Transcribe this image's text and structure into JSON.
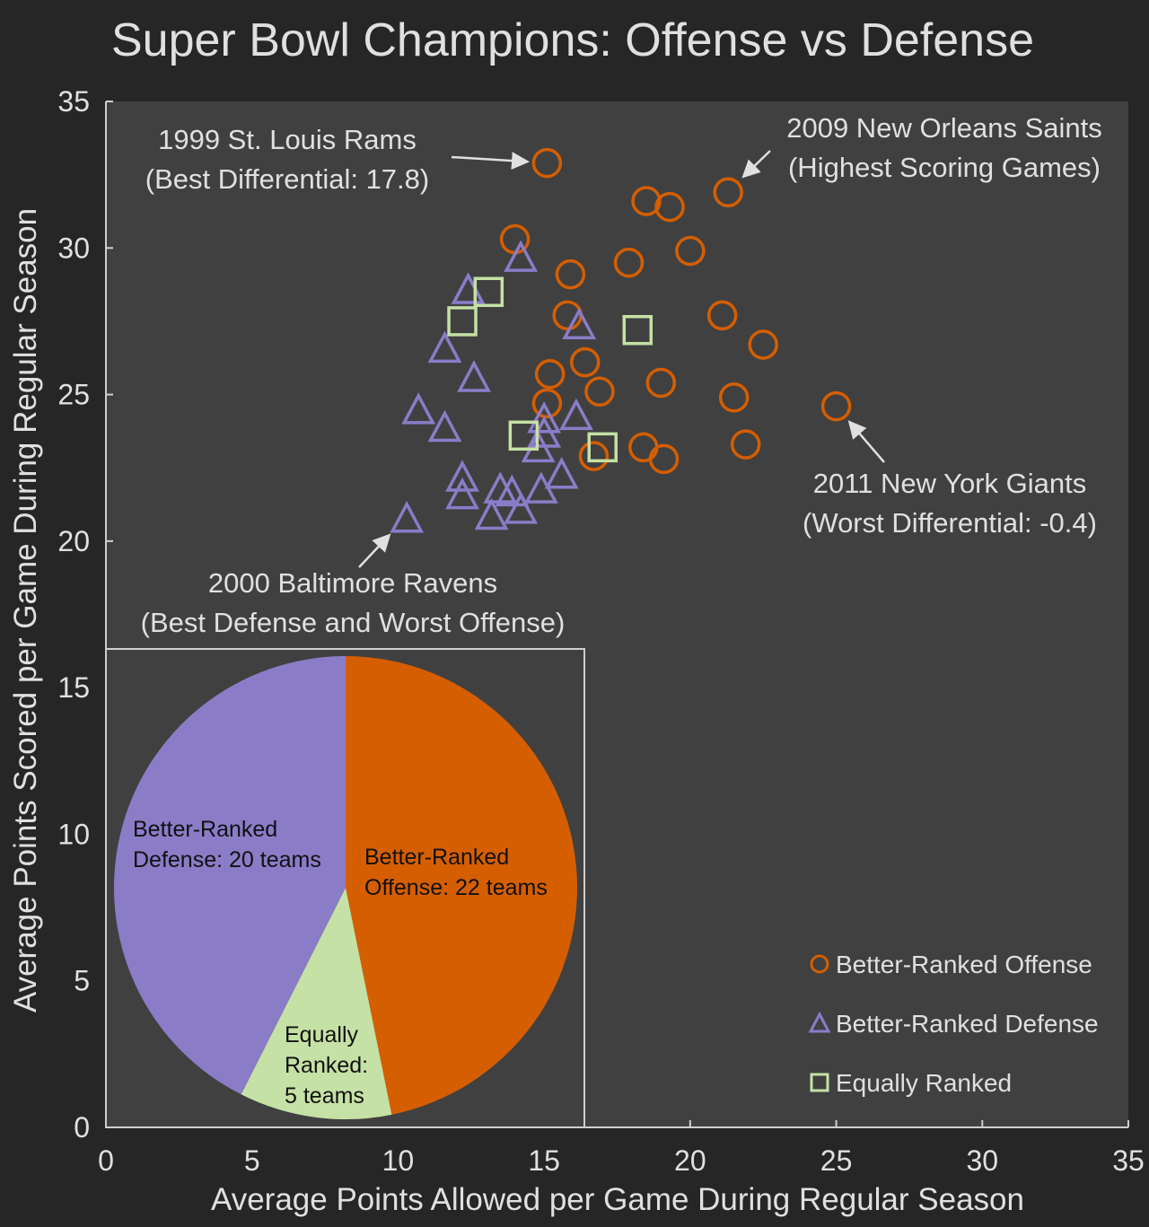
{
  "chart_data": {
    "type": "scatter",
    "title": "Super Bowl Champions: Offense vs Defense",
    "xlabel": "Average Points Allowed per Game During Regular Season",
    "ylabel": "Average Points Scored per Game During Regular Season",
    "xlim": [
      0,
      35
    ],
    "ylim": [
      0,
      35
    ],
    "xticks": [
      0,
      5,
      10,
      15,
      20,
      25,
      30,
      35
    ],
    "yticks": [
      0,
      5,
      10,
      15,
      20,
      25,
      30,
      35
    ],
    "grid": false,
    "legend_position": "bottom-right",
    "colors": {
      "offense": "#d55e00",
      "defense": "#8b7cc8",
      "equal": "#c5e1a5",
      "plot_bg": "#404040",
      "page_bg": "#262626"
    },
    "series": [
      {
        "name": "Better-Ranked Offense",
        "marker": "circle",
        "points": [
          [
            15.1,
            32.9
          ],
          [
            14.0,
            30.3
          ],
          [
            21.3,
            31.9
          ],
          [
            18.5,
            31.6
          ],
          [
            19.3,
            31.4
          ],
          [
            20.0,
            29.9
          ],
          [
            17.9,
            29.5
          ],
          [
            15.9,
            29.1
          ],
          [
            15.8,
            27.7
          ],
          [
            21.1,
            27.7
          ],
          [
            22.5,
            26.7
          ],
          [
            16.4,
            26.1
          ],
          [
            15.2,
            25.7
          ],
          [
            19.0,
            25.4
          ],
          [
            16.9,
            25.1
          ],
          [
            21.5,
            24.9
          ],
          [
            15.1,
            24.7
          ],
          [
            25.0,
            24.6
          ],
          [
            21.9,
            23.3
          ],
          [
            16.7,
            22.9
          ],
          [
            18.4,
            23.2
          ],
          [
            19.1,
            22.8
          ]
        ]
      },
      {
        "name": "Better-Ranked Defense",
        "marker": "triangle",
        "points": [
          [
            14.2,
            29.7
          ],
          [
            12.4,
            28.6
          ],
          [
            16.2,
            27.4
          ],
          [
            11.6,
            26.6
          ],
          [
            12.6,
            25.6
          ],
          [
            10.7,
            24.5
          ],
          [
            11.6,
            23.9
          ],
          [
            15.0,
            24.2
          ],
          [
            16.1,
            24.3
          ],
          [
            15.0,
            23.7
          ],
          [
            14.8,
            23.2
          ],
          [
            12.2,
            22.2
          ],
          [
            12.2,
            21.6
          ],
          [
            13.5,
            21.8
          ],
          [
            13.9,
            21.7
          ],
          [
            14.9,
            21.8
          ],
          [
            15.6,
            22.3
          ],
          [
            13.2,
            20.9
          ],
          [
            14.2,
            21.1
          ],
          [
            10.3,
            20.8
          ]
        ]
      },
      {
        "name": "Equally Ranked",
        "marker": "square",
        "points": [
          [
            13.1,
            28.5
          ],
          [
            12.2,
            27.5
          ],
          [
            18.2,
            27.2
          ],
          [
            14.3,
            23.6
          ],
          [
            17.0,
            23.2
          ]
        ]
      }
    ],
    "annotations": [
      {
        "lines": [
          "1999 St. Louis Rams",
          "(Best Differential: 17.8)"
        ],
        "target": [
          15.1,
          32.9
        ]
      },
      {
        "lines": [
          "2009 New Orleans Saints",
          "(Highest Scoring Games)"
        ],
        "target": [
          21.3,
          31.9
        ]
      },
      {
        "lines": [
          "2011 New York Giants",
          "(Worst Differential: -0.4)"
        ],
        "target": [
          25.0,
          24.6
        ]
      },
      {
        "lines": [
          "2000 Baltimore Ravens",
          "(Best Defense and Worst Offense)"
        ],
        "target": [
          10.3,
          20.8
        ]
      }
    ],
    "inset_pie": {
      "type": "pie",
      "slices": [
        {
          "name": "Better-Ranked Offense",
          "value": 22,
          "label_lines": [
            "Better-Ranked",
            "Offense: 22 teams"
          ]
        },
        {
          "name": "Equally Ranked",
          "value": 5,
          "label_lines": [
            "Equally",
            "Ranked:",
            "5 teams"
          ]
        },
        {
          "name": "Better-Ranked Defense",
          "value": 20,
          "label_lines": [
            "Better-Ranked",
            "Defense: 20 teams"
          ]
        }
      ]
    }
  }
}
